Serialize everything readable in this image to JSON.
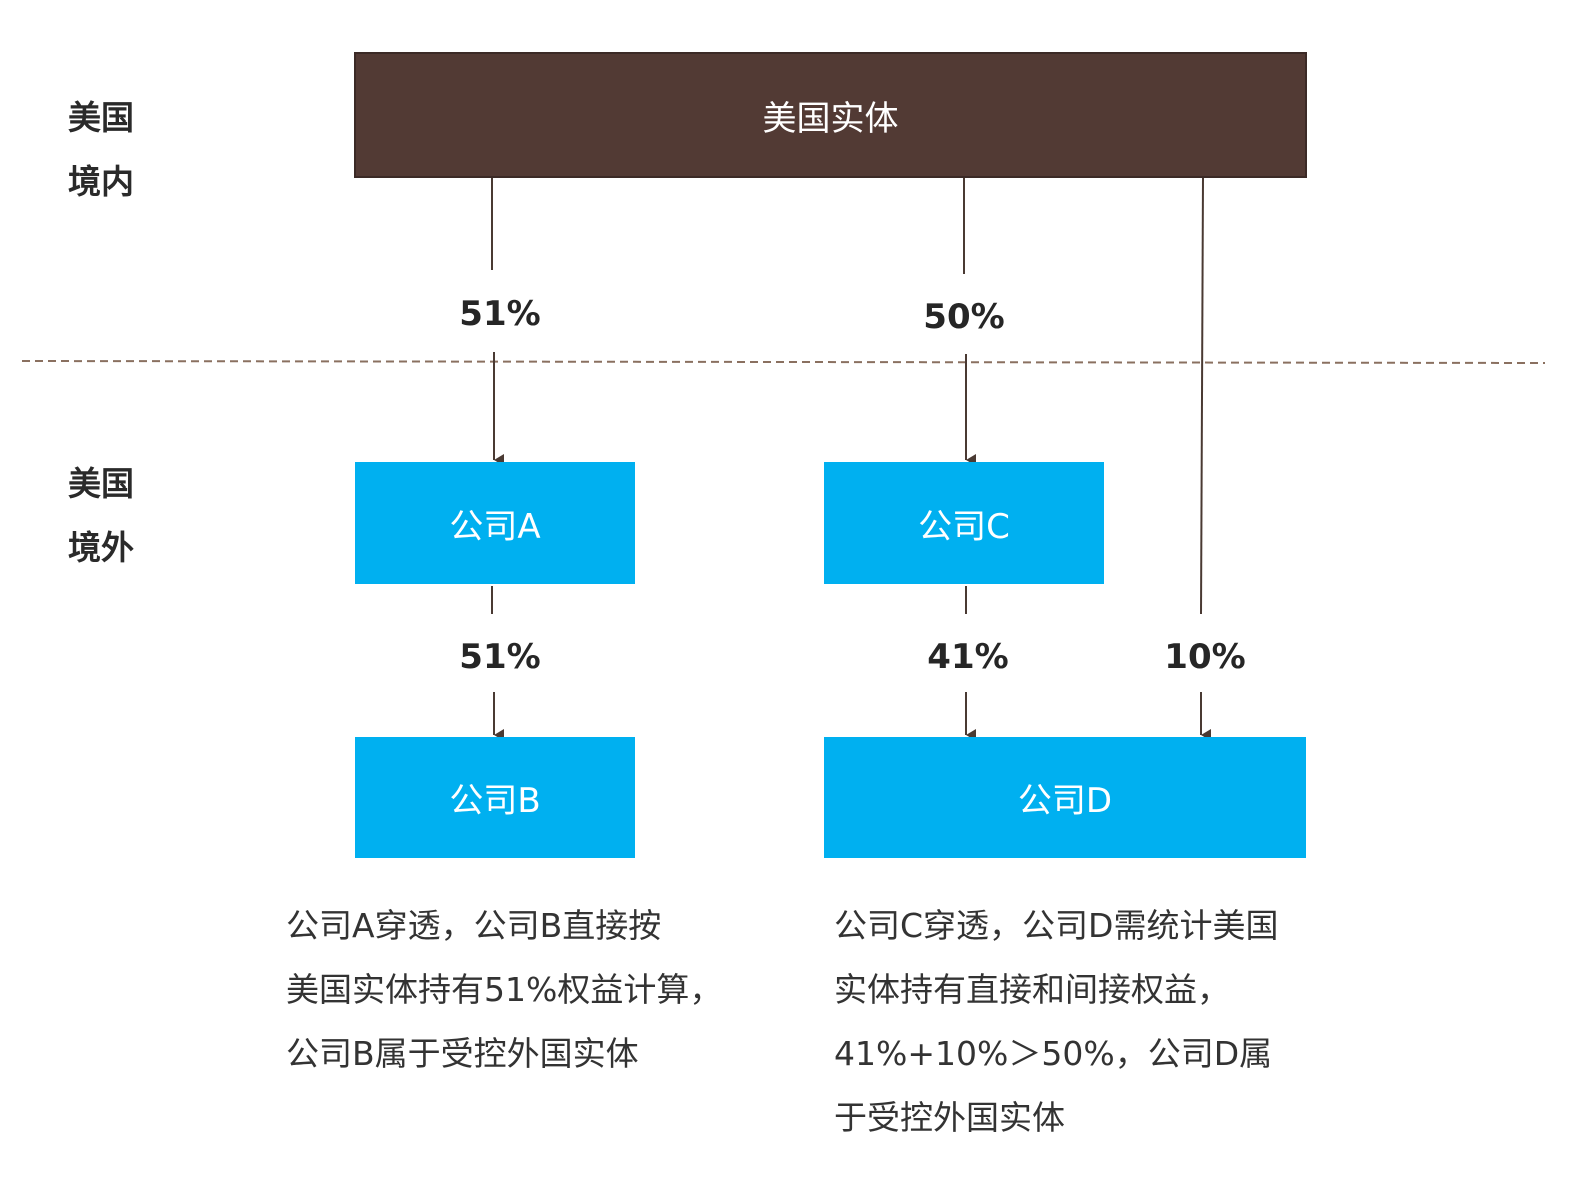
{
  "regions": {
    "domestic": {
      "line1": "美国",
      "line2": "境内"
    },
    "foreign": {
      "line1": "美国",
      "line2": "境外"
    }
  },
  "entities": {
    "parent": "美国实体",
    "company_a": "公司A",
    "company_b": "公司B",
    "company_c": "公司C",
    "company_d": "公司D"
  },
  "ownership": {
    "parent_to_a": "51%",
    "parent_to_c": "50%",
    "a_to_b": "51%",
    "c_to_d": "41%",
    "parent_to_d": "10%"
  },
  "notes": {
    "left": [
      "公司A穿透，公司B直接按",
      "美国实体持有51%权益计算，",
      "公司B属于受控外国实体"
    ],
    "right": [
      "公司C穿透，公司D需统计美国",
      "实体持有直接和间接权益，",
      "41%+10%＞50%，公司D属",
      "于受控外国实体"
    ]
  },
  "colors": {
    "parent_box": "#523a34",
    "company_box": "#00b0f0",
    "connector": "#4a3a33",
    "border_line": "#8a7060"
  }
}
